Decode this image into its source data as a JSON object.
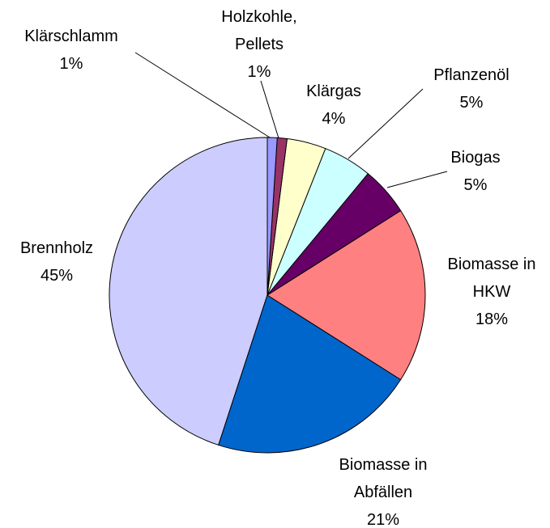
{
  "chart_data": {
    "type": "pie",
    "categories": [
      "Klärschlamm",
      "Holzkohle,\nPellets",
      "Klärgas",
      "Pflanzenöl",
      "Biogas",
      "Biomasse in\nHKW",
      "Biomasse in\nAbfällen",
      "Brennholz"
    ],
    "values": [
      1,
      1,
      4,
      5,
      5,
      18,
      21,
      45
    ],
    "value_labels": [
      "1%",
      "1%",
      "4%",
      "5%",
      "5%",
      "18%",
      "21%",
      "45%"
    ],
    "colors": [
      "#9999ff",
      "#993366",
      "#ffffcc",
      "#ccffff",
      "#660066",
      "#ff8080",
      "#0066cc",
      "#ccccff"
    ]
  }
}
